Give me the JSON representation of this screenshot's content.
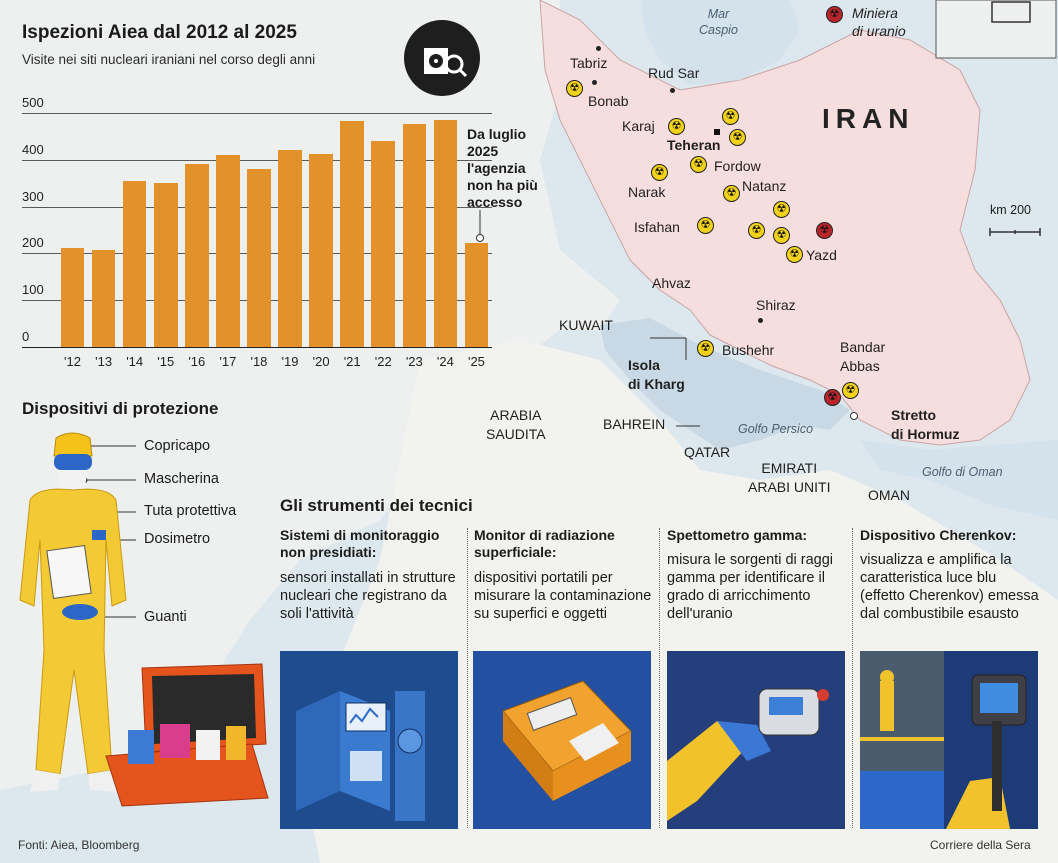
{
  "header": {
    "title": "Ispezioni Aiea dal 2012 al 2025",
    "subtitle": "Visite nei siti nucleari iraniani nel corso degli anni",
    "icon": "nuclear-inspection-icon"
  },
  "chart_data": {
    "type": "bar",
    "categories": [
      "'12",
      "'13",
      "'14",
      "'15",
      "'16",
      "'17",
      "'18",
      "'19",
      "'20",
      "'21",
      "'22",
      "'23",
      "'24",
      "'25"
    ],
    "values": [
      212,
      208,
      355,
      350,
      392,
      410,
      380,
      420,
      412,
      482,
      440,
      476,
      485,
      222
    ],
    "ylim": [
      0,
      500
    ],
    "yticks": [
      0,
      100,
      200,
      300,
      400,
      500
    ],
    "grid": true,
    "color": "#e3912b",
    "annotation": "Da luglio 2025 l'agenzia non ha più accesso"
  },
  "map": {
    "country": "IRAN",
    "legend": {
      "mine_label_1": "Miniera",
      "mine_label_2": "di uranio",
      "mine_color": "#b8262b",
      "site_color": "#f3d21a"
    },
    "scale": {
      "label": "km 200"
    },
    "cities": [
      "Tabriz",
      "Bonab",
      "Rud Sar",
      "Karaj",
      "Teheran",
      "Fordow",
      "Narak",
      "Natanz",
      "Isfahan",
      "Yazd",
      "Ahvaz",
      "Shiraz",
      "Bushehr",
      "Bandar",
      "Abbas"
    ],
    "places": {
      "kharg_1": "Isola",
      "kharg_2": "di Kharg",
      "hormuz_1": "Stretto",
      "hormuz_2": "di Hormuz",
      "kuwait": "KUWAIT",
      "saudi_1": "ARABIA",
      "saudi_2": "SAUDITA",
      "bahrein": "BAHREIN",
      "qatar": "QATAR",
      "uae_1": "EMIRATI",
      "uae_2": "ARABI UNITI",
      "oman": "OMAN"
    },
    "seas": {
      "caspio_1": "Mar",
      "caspio_2": "Caspio",
      "persico": "Golfo Persico",
      "oman": "Golfo di Oman"
    }
  },
  "protection": {
    "title": "Dispositivi di protezione",
    "items": [
      "Copricapo",
      "Mascherina",
      "Tuta protettiva",
      "Dosimetro",
      "Guanti"
    ]
  },
  "tools": {
    "title": "Gli strumenti dei tecnici",
    "columns": [
      {
        "head": "Sistemi di monitoraggio non presidiati:",
        "body": "sensori installati in strutture nucleari che registrano da soli l'attività",
        "panel_color": "#1f4c8f"
      },
      {
        "head": "Monitor di radiazione superficiale:",
        "body": "dispositivi portatili per misurare la contaminazione su superfici e oggetti",
        "panel_color": "#2350a0"
      },
      {
        "head": "Spettometro gamma:",
        "body": "misura le sorgenti di raggi gamma per identificare il grado di arricchimento dell'uranio",
        "panel_color": "#243f7c"
      },
      {
        "head": "Dispositivo Cherenkov:",
        "body": "visualizza e amplifica la caratteristica luce blu (effetto Cherenkov) emessa dal combustibile esausto",
        "panel_color": "#1d3b77"
      }
    ]
  },
  "footer": {
    "sources": "Fonti: Aiea, Bloomberg",
    "credit": "Corriere della Sera"
  }
}
